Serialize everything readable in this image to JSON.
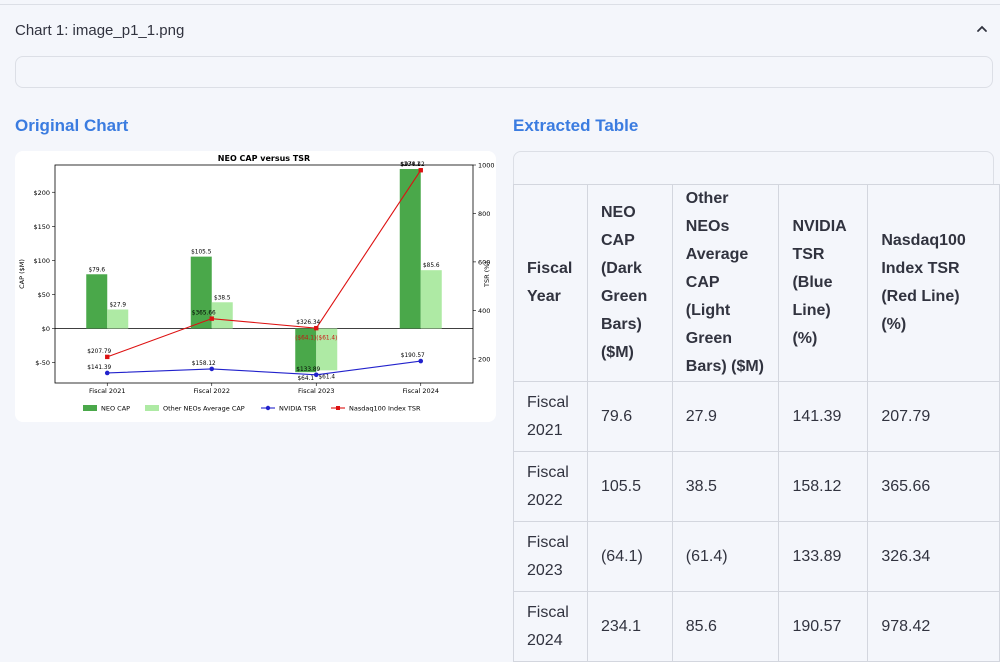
{
  "expander": {
    "title": "Chart 1: image_p1_1.png"
  },
  "left_title": "Original Chart",
  "right_title": "Extracted Table",
  "chart_data": {
    "type": "bar",
    "title": "NEO CAP versus TSR",
    "categories": [
      "Fiscal 2021",
      "Fiscal 2022",
      "Fiscal 2023",
      "Fiscal 2024"
    ],
    "ylabel": "CAP ($M)",
    "y2label": "TSR (%)",
    "ylim": [
      -80,
      240
    ],
    "y2lim": [
      100,
      1000
    ],
    "yticks": [
      "$-50",
      "$0",
      "$50",
      "$100",
      "$150",
      "$200"
    ],
    "y2ticks": [
      "200",
      "400",
      "600",
      "800",
      "1000"
    ],
    "grid": false,
    "legend_position": "bottom",
    "series": [
      {
        "name": "NEO CAP",
        "kind": "bar",
        "color": "#4aa84a",
        "values": [
          79.6,
          105.5,
          -64.1,
          234.1
        ],
        "labels": [
          "$79.6",
          "$105.5",
          "$64.1",
          "$234.1"
        ]
      },
      {
        "name": "Other NEOs Average CAP",
        "kind": "bar",
        "color": "#aeeaa4",
        "values": [
          27.9,
          38.5,
          -61.4,
          85.6
        ],
        "labels": [
          "$27.9",
          "$38.5",
          "$61.4",
          "$85.6"
        ]
      },
      {
        "name": "NVIDIA TSR",
        "kind": "line",
        "axis": "right",
        "color": "#2222cc",
        "values": [
          141.39,
          158.12,
          133.89,
          190.57
        ],
        "labels": [
          "$141.39",
          "$158.12",
          "$133.89",
          "$190.57"
        ]
      },
      {
        "name": "Nasdaq100 Index TSR",
        "kind": "line",
        "axis": "right",
        "color": "#dd1111",
        "values": [
          207.79,
          365.66,
          326.34,
          978.42
        ],
        "labels": [
          "$207.79",
          "$365.66",
          "$326.34",
          "$978.42"
        ]
      }
    ],
    "annotation": "($64.1)($61.4)"
  },
  "table": {
    "headers": [
      "Fiscal Year",
      "NEO CAP (Dark Green Bars) ($M)",
      "Other NEOs Average CAP (Light Green Bars) ($M)",
      "NVIDIA TSR (Blue Line) (%)",
      "Nasdaq100 Index TSR (Red Line) (%)"
    ],
    "rows": [
      [
        "Fiscal 2021",
        "79.6",
        "27.9",
        "141.39",
        "207.79"
      ],
      [
        "Fiscal 2022",
        "105.5",
        "38.5",
        "158.12",
        "365.66"
      ],
      [
        "Fiscal 2023",
        "(64.1)",
        "(61.4)",
        "133.89",
        "326.34"
      ],
      [
        "Fiscal 2024",
        "234.1",
        "85.6",
        "190.57",
        "978.42"
      ]
    ]
  }
}
